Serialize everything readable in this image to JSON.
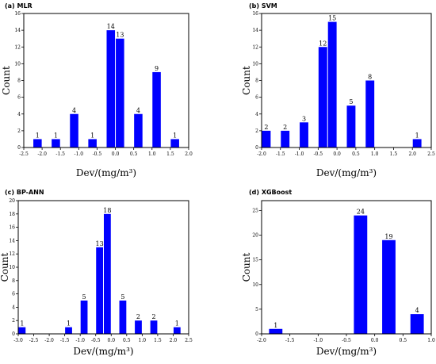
{
  "chart_data": [
    {
      "type": "bar",
      "panel_label": "(a) MLR",
      "ylabel": "Count",
      "xlabel": "Dev/(mg/m³)",
      "xlim": [
        -2.5,
        2.0
      ],
      "ylim": [
        0,
        16
      ],
      "xticks": [
        -2.5,
        -2.0,
        -1.5,
        -1.0,
        -0.5,
        0.0,
        0.5,
        1.0,
        1.5,
        2.0
      ],
      "yticks": [
        0,
        2,
        4,
        6,
        8,
        10,
        12,
        14,
        16
      ],
      "bin_width": 0.25,
      "bars": [
        {
          "x": -2.125,
          "value": 1
        },
        {
          "x": -1.625,
          "value": 1
        },
        {
          "x": -1.125,
          "value": 4
        },
        {
          "x": -0.625,
          "value": 1
        },
        {
          "x": -0.125,
          "value": 14
        },
        {
          "x": 0.125,
          "value": 13
        },
        {
          "x": 0.625,
          "value": 4
        },
        {
          "x": 1.125,
          "value": 9
        },
        {
          "x": 1.625,
          "value": 1
        }
      ],
      "bar_color": "#0000ff"
    },
    {
      "type": "bar",
      "panel_label": "(b) SVM",
      "ylabel": "Count",
      "xlabel": "Dev/(mg/m³)",
      "xlim": [
        -2.0,
        2.5
      ],
      "ylim": [
        0,
        16
      ],
      "xticks": [
        -2.0,
        -1.5,
        -1.0,
        -0.5,
        0.0,
        0.5,
        1.0,
        1.5,
        2.0,
        2.5
      ],
      "yticks": [
        0,
        2,
        4,
        6,
        8,
        10,
        12,
        14,
        16
      ],
      "bin_width": 0.25,
      "bars": [
        {
          "x": -1.875,
          "value": 2
        },
        {
          "x": -1.375,
          "value": 2
        },
        {
          "x": -0.875,
          "value": 3
        },
        {
          "x": -0.375,
          "value": 12
        },
        {
          "x": -0.125,
          "value": 15
        },
        {
          "x": 0.375,
          "value": 5
        },
        {
          "x": 0.875,
          "value": 8
        },
        {
          "x": 2.125,
          "value": 1
        }
      ],
      "bar_color": "#0000ff"
    },
    {
      "type": "bar",
      "panel_label": "(c) BP-ANN",
      "ylabel": "Count",
      "xlabel": "Dev/(mg/m³)",
      "xlim": [
        -3.0,
        2.5
      ],
      "ylim": [
        0,
        20
      ],
      "xticks": [
        -3.0,
        -2.5,
        -2.0,
        -1.5,
        -1.0,
        -0.5,
        0.0,
        0.5,
        1.0,
        1.5,
        2.0,
        2.5
      ],
      "yticks": [
        0,
        2,
        4,
        6,
        8,
        10,
        12,
        14,
        16,
        18,
        20
      ],
      "bin_width": 0.25,
      "bars": [
        {
          "x": -2.875,
          "value": 1
        },
        {
          "x": -1.375,
          "value": 1
        },
        {
          "x": -0.875,
          "value": 5
        },
        {
          "x": -0.375,
          "value": 13
        },
        {
          "x": -0.125,
          "value": 18
        },
        {
          "x": 0.375,
          "value": 5
        },
        {
          "x": 0.875,
          "value": 2
        },
        {
          "x": 1.375,
          "value": 2
        },
        {
          "x": 2.125,
          "value": 1
        }
      ],
      "bar_color": "#0000ff"
    },
    {
      "type": "bar",
      "panel_label": "(d) XGBoost",
      "ylabel": "Count",
      "xlabel": "Dev/(mg/m³)",
      "xlim": [
        -2.0,
        1.0
      ],
      "ylim": [
        0,
        27
      ],
      "xticks": [
        -2.0,
        -1.5,
        -1.0,
        -0.5,
        0.0,
        0.5,
        1.0
      ],
      "xtick_labels": [
        "-2.0",
        "-1.5",
        "-1.0",
        "-0.5",
        "0.0",
        "0.5",
        "1.0"
      ],
      "yticks": [
        0,
        5,
        10,
        15,
        20,
        25
      ],
      "bin_width": 0.25,
      "bars": [
        {
          "x": -1.75,
          "value": 1
        },
        {
          "x": -0.25,
          "value": 24
        },
        {
          "x": 0.25,
          "value": 19
        },
        {
          "x": 0.75,
          "value": 4
        }
      ],
      "bar_color": "#0000ff"
    }
  ]
}
